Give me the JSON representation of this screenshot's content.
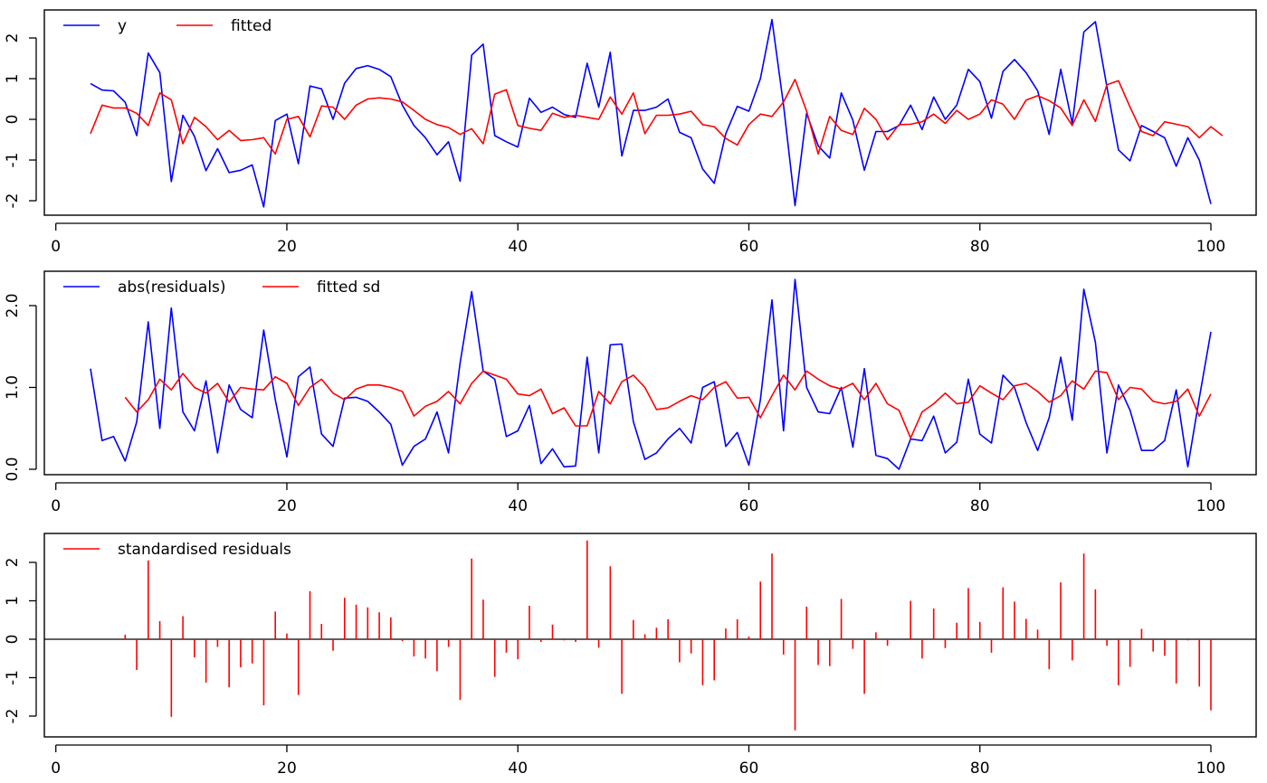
{
  "chart_data": [
    {
      "type": "line",
      "xlim": [
        3,
        100
      ],
      "ylim": [
        -2.1,
        2.45
      ],
      "xticks": [
        0,
        20,
        40,
        60,
        80,
        100
      ],
      "yticks": [
        -2,
        -1,
        0,
        1,
        2
      ],
      "ytick_labels": [
        "-2",
        "-1",
        "0",
        "1",
        "2"
      ],
      "legend_position": "top-left",
      "x_start": 3,
      "series": [
        {
          "name": "y",
          "color": "#0000FF",
          "values": [
            0.88,
            0.72,
            0.7,
            0.42,
            -0.4,
            1.63,
            1.15,
            -1.53,
            0.1,
            -0.42,
            -1.26,
            -0.72,
            -1.31,
            -1.25,
            -1.12,
            -2.15,
            -0.03,
            0.13,
            -1.09,
            0.82,
            0.75,
            0.0,
            0.89,
            1.25,
            1.32,
            1.23,
            1.05,
            0.35,
            -0.15,
            -0.45,
            -0.87,
            -0.55,
            -1.52,
            1.58,
            1.85,
            -0.4,
            -0.55,
            -0.68,
            0.52,
            0.17,
            0.3,
            0.12,
            0.05,
            1.38,
            0.3,
            1.65,
            -0.9,
            0.22,
            0.22,
            0.3,
            0.5,
            -0.32,
            -0.45,
            -1.22,
            -1.57,
            -0.35,
            0.32,
            0.2,
            1.0,
            2.45,
            0.35,
            -2.12,
            0.15,
            -0.65,
            -0.95,
            0.65,
            -0.02,
            -1.25,
            -0.3,
            -0.3,
            -0.15,
            0.35,
            -0.25,
            0.55,
            0.0,
            0.35,
            1.23,
            0.93,
            0.03,
            1.18,
            1.47,
            1.15,
            0.7,
            -0.37,
            1.23,
            -0.1,
            2.15,
            2.4,
            0.8,
            -0.75,
            -1.02,
            -0.15,
            -0.3,
            -0.45,
            -1.15,
            -0.45,
            -1.0,
            -2.08
          ]
        },
        {
          "name": "fitted",
          "color": "#FF0000",
          "values": [
            -0.35,
            0.35,
            0.28,
            0.28,
            0.15,
            -0.15,
            0.65,
            0.48,
            -0.6,
            0.05,
            -0.18,
            -0.5,
            -0.27,
            -0.52,
            -0.5,
            -0.45,
            -0.85,
            0.0,
            0.07,
            -0.43,
            0.33,
            0.3,
            0.0,
            0.35,
            0.5,
            0.53,
            0.5,
            0.43,
            0.22,
            0.0,
            -0.13,
            -0.2,
            -0.37,
            -0.23,
            -0.6,
            0.62,
            0.73,
            -0.15,
            -0.22,
            -0.27,
            0.15,
            0.05,
            0.1,
            0.05,
            0.0,
            0.55,
            0.13,
            0.65,
            -0.35,
            0.1,
            0.1,
            0.13,
            0.2,
            -0.13,
            -0.18,
            -0.47,
            -0.63,
            -0.13,
            0.13,
            0.07,
            0.43,
            0.98,
            0.2,
            -0.85,
            0.07,
            -0.27,
            -0.37,
            0.27,
            0.0,
            -0.5,
            -0.13,
            -0.12,
            -0.06,
            0.13,
            -0.1,
            0.22,
            0.0,
            0.13,
            0.48,
            0.37,
            0.0,
            0.47,
            0.58,
            0.46,
            0.28,
            -0.15,
            0.48,
            -0.05,
            0.85,
            0.95,
            0.3,
            -0.3,
            -0.4,
            -0.06,
            -0.12,
            -0.18,
            -0.45,
            -0.18,
            -0.4
          ]
        }
      ]
    },
    {
      "type": "line",
      "xlim": [
        3,
        100
      ],
      "ylim": [
        0.0,
        2.3
      ],
      "xticks": [
        0,
        20,
        40,
        60,
        80,
        100
      ],
      "yticks": [
        0,
        1,
        2
      ],
      "ytick_labels": [
        "0.0",
        "1.0",
        "2.0"
      ],
      "legend_position": "top-left",
      "series": [
        {
          "name": "abs(residuals)",
          "color": "#0000FF",
          "x_start": 3,
          "values": [
            1.23,
            0.35,
            0.4,
            0.1,
            0.58,
            1.8,
            0.5,
            1.97,
            0.7,
            0.47,
            1.08,
            0.2,
            1.03,
            0.73,
            0.63,
            1.7,
            0.85,
            0.15,
            1.13,
            1.25,
            0.43,
            0.28,
            0.87,
            0.88,
            0.83,
            0.7,
            0.55,
            0.05,
            0.28,
            0.37,
            0.7,
            0.2,
            1.3,
            2.17,
            1.2,
            1.1,
            0.4,
            0.47,
            0.78,
            0.07,
            0.25,
            0.03,
            0.04,
            1.37,
            0.2,
            1.52,
            1.53,
            0.58,
            0.12,
            0.2,
            0.37,
            0.5,
            0.32,
            1.0,
            1.07,
            0.28,
            0.45,
            0.05,
            0.85,
            2.07,
            0.47,
            2.32,
            1.0,
            0.7,
            0.68,
            1.0,
            0.27,
            1.23,
            0.17,
            0.13,
            0.0,
            0.37,
            0.35,
            0.65,
            0.2,
            0.33,
            1.1,
            0.43,
            0.32,
            1.15,
            1.0,
            0.57,
            0.23,
            0.63,
            1.37,
            0.6,
            2.2,
            1.55,
            0.2,
            1.03,
            0.72,
            0.23,
            0.23,
            0.35,
            0.97,
            0.03,
            0.87,
            1.68
          ]
        },
        {
          "name": "fitted sd",
          "color": "#FF0000",
          "x_start": 6,
          "values": [
            0.88,
            0.7,
            0.85,
            1.1,
            0.97,
            1.17,
            1.0,
            0.93,
            1.05,
            0.82,
            1.0,
            0.98,
            0.97,
            1.13,
            1.05,
            0.78,
            1.0,
            1.1,
            0.93,
            0.85,
            0.98,
            1.03,
            1.03,
            1.0,
            0.95,
            0.65,
            0.77,
            0.83,
            0.95,
            0.8,
            1.05,
            1.2,
            1.15,
            1.1,
            0.92,
            0.9,
            0.98,
            0.68,
            0.75,
            0.53,
            0.53,
            0.95,
            0.8,
            1.07,
            1.15,
            1.0,
            0.73,
            0.75,
            0.83,
            0.9,
            0.85,
            1.0,
            1.07,
            0.87,
            0.88,
            0.63,
            0.9,
            1.15,
            0.97,
            1.2,
            1.1,
            1.02,
            0.98,
            1.05,
            0.85,
            1.05,
            0.8,
            0.72,
            0.38,
            0.7,
            0.8,
            0.93,
            0.8,
            0.82,
            1.02,
            0.93,
            0.85,
            1.02,
            1.05,
            0.95,
            0.82,
            0.9,
            1.08,
            0.98,
            1.2,
            1.18,
            0.85,
            1.0,
            0.98,
            0.83,
            0.8,
            0.83,
            0.98,
            0.65,
            0.92
          ]
        }
      ]
    },
    {
      "type": "bar",
      "xlim": [
        3,
        100
      ],
      "ylim": [
        -2.4,
        2.6
      ],
      "xticks": [
        0,
        20,
        40,
        60,
        80,
        100
      ],
      "yticks": [
        -2,
        -1,
        0,
        1,
        2
      ],
      "ytick_labels": [
        "-2",
        "-1",
        "0",
        "1",
        "2"
      ],
      "legend_position": "top-left",
      "series": [
        {
          "name": "standardised residuals",
          "color": "#FF0000",
          "x_start": 6,
          "values": [
            0.12,
            -0.8,
            2.05,
            0.47,
            -2.02,
            0.6,
            -0.47,
            -1.13,
            -0.2,
            -1.25,
            -0.73,
            -0.63,
            -1.72,
            0.72,
            0.15,
            -1.45,
            1.25,
            0.4,
            -0.3,
            1.08,
            0.9,
            0.83,
            0.7,
            0.57,
            -0.05,
            -0.45,
            -0.5,
            -0.83,
            -0.2,
            -1.58,
            2.1,
            1.03,
            -0.98,
            -0.35,
            -0.52,
            0.87,
            -0.07,
            0.38,
            -0.03,
            -0.07,
            2.57,
            -0.22,
            1.9,
            -1.42,
            0.5,
            0.13,
            0.3,
            0.52,
            -0.6,
            -0.37,
            -1.2,
            -1.07,
            0.28,
            0.52,
            0.07,
            1.5,
            2.23,
            -0.4,
            -2.37,
            0.85,
            -0.67,
            -0.7,
            1.05,
            -0.25,
            -1.42,
            0.18,
            -0.17,
            0.0,
            1.0,
            -0.5,
            0.8,
            -0.23,
            0.43,
            1.33,
            0.45,
            -0.35,
            1.35,
            0.98,
            0.53,
            0.25,
            -0.78,
            1.48,
            -0.55,
            2.23,
            1.3,
            -0.17,
            -1.2,
            -0.72,
            0.27,
            -0.32,
            -0.43,
            -1.15,
            -0.03,
            -1.23,
            -1.85
          ]
        }
      ]
    }
  ]
}
